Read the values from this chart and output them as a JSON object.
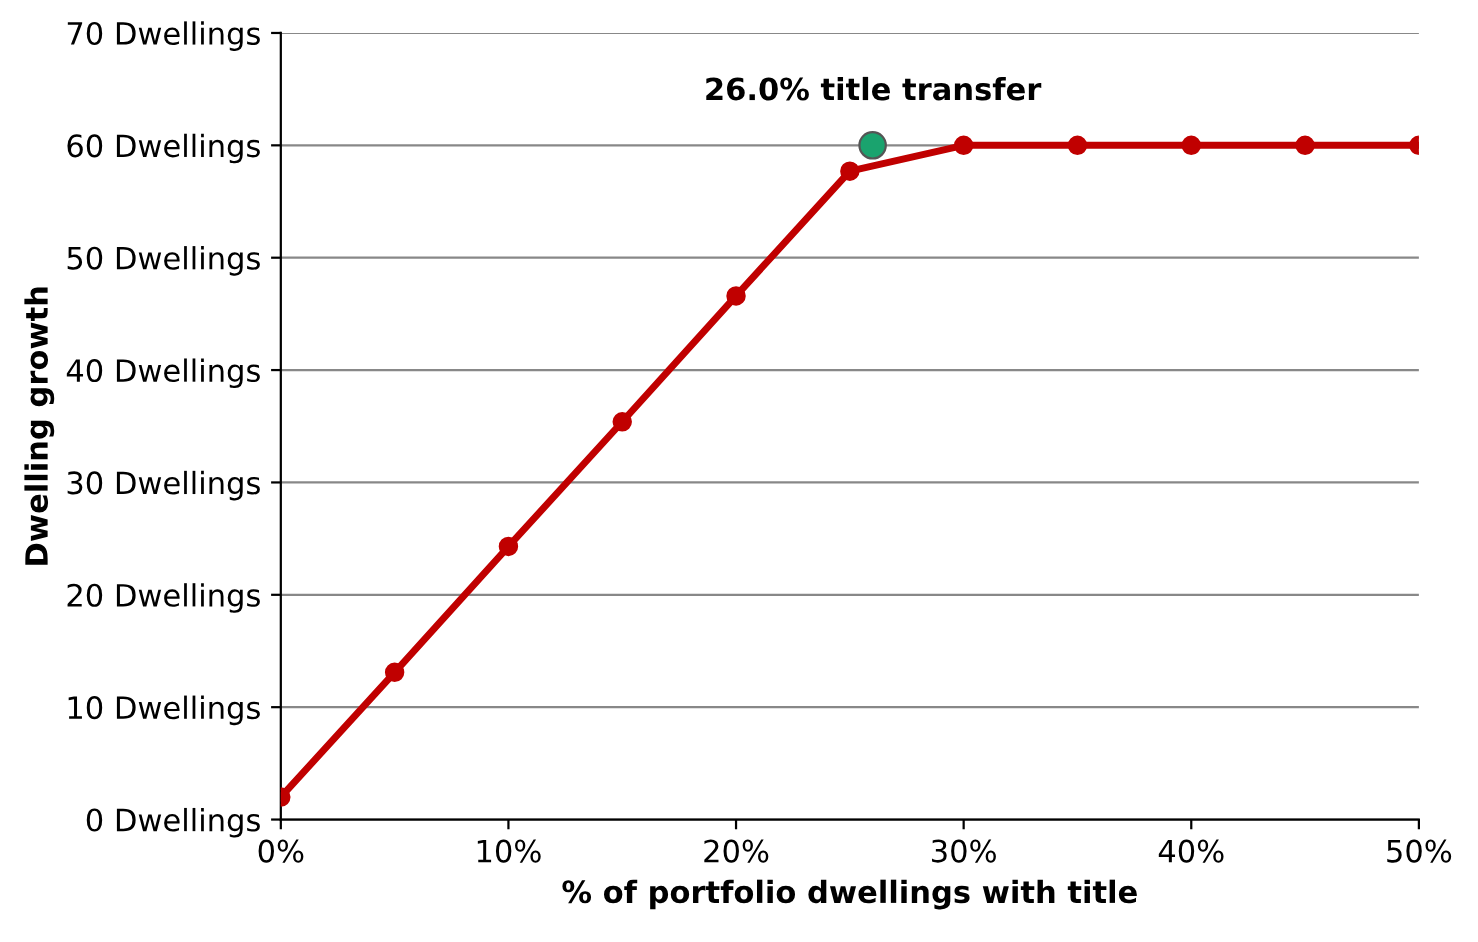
{
  "chart_data": {
    "type": "line",
    "xlabel": "% of portfolio dwellings with title",
    "ylabel": "Dwelling growth",
    "series": [
      {
        "color": "#c00000",
        "marker": "circle",
        "x": [
          0,
          5,
          10,
          15,
          20,
          25,
          30,
          35,
          40,
          45,
          50
        ],
        "values": [
          2,
          13.1,
          24.3,
          35.4,
          46.6,
          57.7,
          60,
          60,
          60,
          60,
          60
        ]
      },
      {
        "type": "scatter",
        "color": "#1aa36e",
        "marker": "circle",
        "x": [
          26
        ],
        "values": [
          60
        ]
      }
    ],
    "annotations": [
      {
        "text": "26.0% title transfer",
        "x": 26,
        "y": 60
      }
    ],
    "xlim": [
      0,
      50
    ],
    "xticks": [
      {
        "value": 0,
        "label": "0%"
      },
      {
        "value": 10,
        "label": "10%"
      },
      {
        "value": 20,
        "label": "20%"
      },
      {
        "value": 30,
        "label": "30%"
      },
      {
        "value": 40,
        "label": "40%"
      },
      {
        "value": 50,
        "label": "50%"
      }
    ],
    "ylim": [
      0,
      70
    ],
    "yticks": [
      {
        "value": 0,
        "label": "0 Dwellings"
      },
      {
        "value": 10,
        "label": "10 Dwellings"
      },
      {
        "value": 20,
        "label": "20 Dwellings"
      },
      {
        "value": 30,
        "label": "30 Dwellings"
      },
      {
        "value": 40,
        "label": "40 Dwellings"
      },
      {
        "value": 50,
        "label": "50 Dwellings"
      },
      {
        "value": 60,
        "label": "60 Dwellings"
      },
      {
        "value": 70,
        "label": "70 Dwellings"
      }
    ],
    "grid": "y",
    "legend": false
  }
}
